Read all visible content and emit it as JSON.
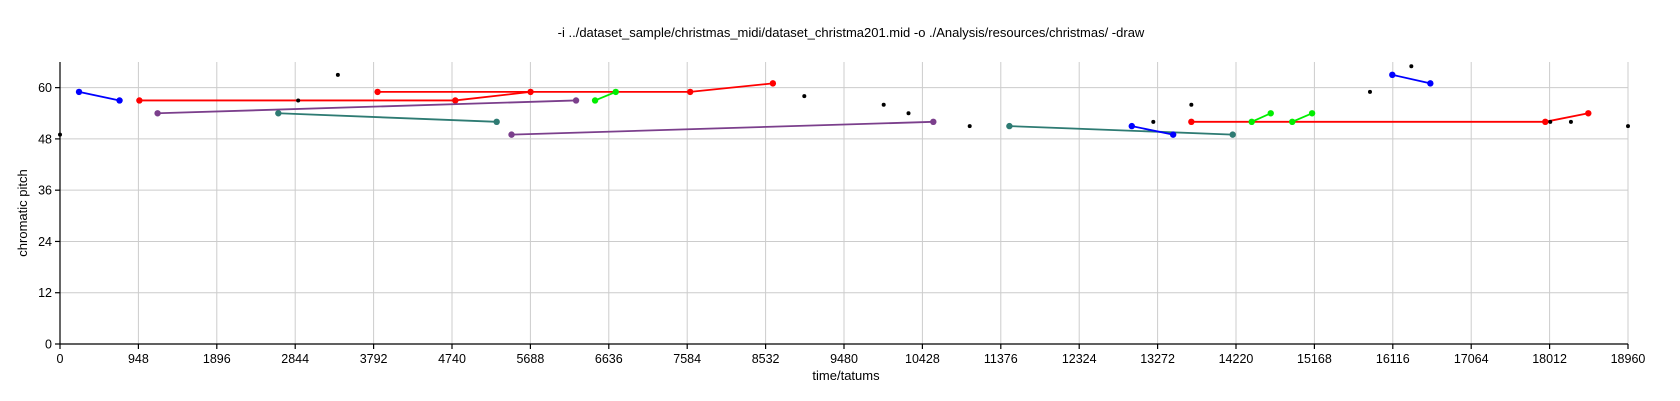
{
  "chart_data": {
    "type": "line",
    "title": "-i ../dataset_sample/christmas_midi/dataset_christma201.mid -o ./Analysis/resources/christmas/ -draw",
    "xlabel": "time/tatums",
    "ylabel": "chromatic pitch",
    "xlim": [
      0,
      18960
    ],
    "ylim": [
      0,
      66
    ],
    "xticks": [
      0,
      948,
      1896,
      2844,
      3792,
      4740,
      5688,
      6636,
      7584,
      8532,
      9480,
      10428,
      11376,
      12324,
      13272,
      14220,
      15168,
      16116,
      17064,
      18012,
      18960
    ],
    "yticks": [
      0,
      12,
      24,
      36,
      48,
      60
    ],
    "grid": true,
    "colors": {
      "red": "#ff0000",
      "blue": "#0000ff",
      "green": "#00ee00",
      "purple": "#7b3f8c",
      "teal": "#2e7b73",
      "black": "#000000"
    },
    "series": [
      {
        "color": "blue",
        "points": [
          [
            230,
            59
          ],
          [
            720,
            57
          ]
        ]
      },
      {
        "color": "red",
        "points": [
          [
            960,
            57
          ],
          [
            4780,
            57
          ],
          [
            5690,
            59
          ]
        ]
      },
      {
        "color": "purple",
        "points": [
          [
            1180,
            54
          ],
          [
            6240,
            57
          ]
        ]
      },
      {
        "color": "teal",
        "points": [
          [
            2640,
            54
          ],
          [
            5280,
            52
          ]
        ]
      },
      {
        "color": "red",
        "points": [
          [
            3840,
            59
          ],
          [
            7620,
            59
          ],
          [
            8620,
            61
          ]
        ]
      },
      {
        "color": "green",
        "points": [
          [
            6470,
            57
          ],
          [
            6720,
            59
          ]
        ]
      },
      {
        "color": "purple",
        "points": [
          [
            5460,
            49
          ],
          [
            10560,
            52
          ]
        ]
      },
      {
        "color": "teal",
        "points": [
          [
            11480,
            51
          ],
          [
            14180,
            49
          ]
        ]
      },
      {
        "color": "blue",
        "points": [
          [
            12960,
            51
          ],
          [
            13460,
            49
          ]
        ]
      },
      {
        "color": "red",
        "points": [
          [
            13680,
            52
          ],
          [
            17960,
            52
          ],
          [
            18480,
            54
          ]
        ]
      },
      {
        "color": "green",
        "points": [
          [
            14410,
            52
          ],
          [
            14640,
            54
          ]
        ]
      },
      {
        "color": "green",
        "points": [
          [
            14900,
            52
          ],
          [
            15140,
            54
          ]
        ]
      },
      {
        "color": "blue",
        "points": [
          [
            16110,
            63
          ],
          [
            16570,
            61
          ]
        ]
      }
    ],
    "isolated_points": [
      [
        0,
        49
      ],
      [
        2880,
        57
      ],
      [
        3360,
        63
      ],
      [
        9000,
        58
      ],
      [
        9960,
        56
      ],
      [
        10260,
        54
      ],
      [
        11000,
        51
      ],
      [
        13220,
        52
      ],
      [
        13680,
        56
      ],
      [
        15840,
        59
      ],
      [
        16340,
        65
      ],
      [
        18020,
        52
      ],
      [
        18270,
        52
      ],
      [
        18960,
        51
      ]
    ]
  }
}
